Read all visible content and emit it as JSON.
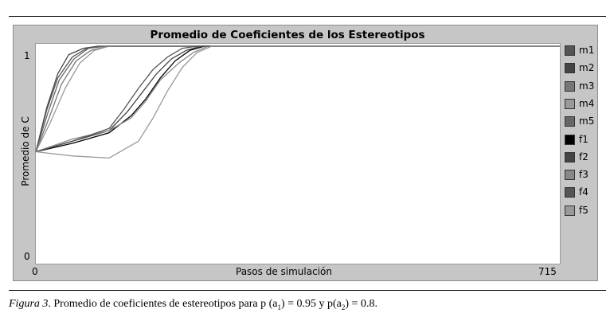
{
  "chart_data": {
    "type": "line",
    "title": "Promedio de Coeficientes de los Estereotipos",
    "xlabel": "Pasos de simulación",
    "ylabel": "Promedio de C",
    "xlim": [
      0,
      715
    ],
    "ylim": [
      0,
      1
    ],
    "x_tick_labels": [
      "0",
      "715"
    ],
    "y_tick_labels": [
      "0",
      "1"
    ],
    "legend_position": "right",
    "series": [
      {
        "name": "m1",
        "color": "#555555",
        "x": [
          0,
          15,
          30,
          50,
          70,
          90,
          130,
          715
        ],
        "y": [
          0.5,
          0.7,
          0.85,
          0.95,
          0.99,
          1.0,
          1.0,
          1.0
        ]
      },
      {
        "name": "m2",
        "color": "#444444",
        "x": [
          0,
          15,
          30,
          45,
          65,
          85,
          120,
          715
        ],
        "y": [
          0.5,
          0.71,
          0.87,
          0.96,
          0.99,
          1.0,
          1.0,
          1.0
        ]
      },
      {
        "name": "m3",
        "color": "#777777",
        "x": [
          0,
          18,
          35,
          55,
          75,
          100,
          140,
          715
        ],
        "y": [
          0.5,
          0.66,
          0.82,
          0.93,
          0.98,
          1.0,
          1.0,
          1.0
        ]
      },
      {
        "name": "m4",
        "color": "#999999",
        "x": [
          0,
          20,
          40,
          60,
          80,
          100,
          150,
          715
        ],
        "y": [
          0.5,
          0.64,
          0.8,
          0.92,
          0.98,
          1.0,
          1.0,
          1.0
        ]
      },
      {
        "name": "m5",
        "color": "#666666",
        "x": [
          0,
          16,
          32,
          52,
          72,
          95,
          135,
          715
        ],
        "y": [
          0.5,
          0.68,
          0.84,
          0.94,
          0.99,
          1.0,
          1.0,
          1.0
        ]
      },
      {
        "name": "f1",
        "color": "#000000",
        "x": [
          0,
          50,
          100,
          130,
          150,
          170,
          190,
          210,
          230,
          715
        ],
        "y": [
          0.5,
          0.54,
          0.59,
          0.67,
          0.75,
          0.85,
          0.93,
          0.98,
          1.0,
          1.0
        ]
      },
      {
        "name": "f2",
        "color": "#444444",
        "x": [
          0,
          50,
          100,
          125,
          145,
          165,
          185,
          205,
          225,
          715
        ],
        "y": [
          0.5,
          0.55,
          0.6,
          0.69,
          0.78,
          0.87,
          0.94,
          0.98,
          1.0,
          1.0
        ]
      },
      {
        "name": "f3",
        "color": "#888888",
        "x": [
          0,
          50,
          100,
          130,
          150,
          170,
          195,
          215,
          235,
          715
        ],
        "y": [
          0.5,
          0.56,
          0.6,
          0.66,
          0.74,
          0.84,
          0.92,
          0.97,
          1.0,
          1.0
        ]
      },
      {
        "name": "f4",
        "color": "#555555",
        "x": [
          0,
          50,
          100,
          120,
          140,
          160,
          180,
          200,
          220,
          715
        ],
        "y": [
          0.5,
          0.55,
          0.61,
          0.7,
          0.8,
          0.89,
          0.95,
          0.99,
          1.0,
          1.0
        ]
      },
      {
        "name": "f5",
        "color": "#999999",
        "x": [
          0,
          50,
          100,
          140,
          160,
          180,
          200,
          220,
          240,
          715
        ],
        "y": [
          0.5,
          0.48,
          0.47,
          0.55,
          0.66,
          0.79,
          0.9,
          0.97,
          1.0,
          1.0
        ]
      }
    ]
  },
  "caption": {
    "figure_label": "Figura 3",
    "text_before_a1": ". Promedio de coeficientes de estereotipos para p (a",
    "a1_sub": "1",
    "text_mid": ") = 0.95 y p(a",
    "a2_sub": "2",
    "text_after": ") = 0.8."
  }
}
